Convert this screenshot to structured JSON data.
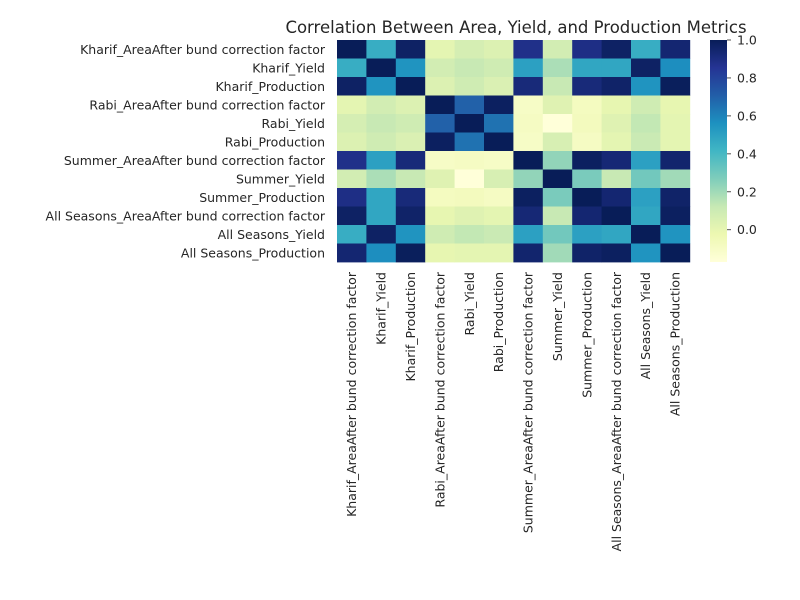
{
  "chart_data": {
    "type": "heatmap",
    "title": "Correlation Between Area, Yield, and Production Metrics",
    "xlabel": "",
    "ylabel": "",
    "labels": [
      "Kharif_AreaAfter bund correction factor",
      "Kharif_Yield",
      "Kharif_Production",
      "Rabi_AreaAfter bund correction factor",
      "Rabi_Yield",
      "Rabi_Production",
      "Summer_AreaAfter bund correction factor",
      "Summer_Yield",
      "Summer_Production",
      "All Seasons_AreaAfter bund correction factor",
      "All Seasons_Yield",
      "All Seasons_Production"
    ],
    "matrix": [
      [
        1.0,
        0.45,
        0.97,
        0.01,
        0.07,
        0.04,
        0.88,
        0.08,
        0.89,
        0.97,
        0.45,
        0.94
      ],
      [
        0.45,
        1.0,
        0.55,
        0.08,
        0.12,
        0.09,
        0.5,
        0.18,
        0.48,
        0.48,
        0.97,
        0.57
      ],
      [
        0.97,
        0.55,
        1.0,
        0.04,
        0.09,
        0.05,
        0.92,
        0.12,
        0.92,
        0.96,
        0.55,
        0.99
      ],
      [
        0.01,
        0.08,
        0.04,
        1.0,
        0.7,
        0.98,
        -0.1,
        0.03,
        -0.08,
        0.0,
        0.09,
        0.0
      ],
      [
        0.07,
        0.12,
        0.09,
        0.7,
        1.0,
        0.65,
        -0.09,
        -0.17,
        -0.07,
        0.03,
        0.13,
        0.01
      ],
      [
        0.04,
        0.09,
        0.05,
        0.98,
        0.65,
        1.0,
        -0.1,
        0.06,
        -0.09,
        0.01,
        0.11,
        0.01
      ],
      [
        0.88,
        0.5,
        0.92,
        -0.1,
        -0.09,
        -0.1,
        1.0,
        0.23,
        0.98,
        0.93,
        0.5,
        0.95
      ],
      [
        0.08,
        0.18,
        0.12,
        0.03,
        -0.17,
        0.06,
        0.23,
        1.0,
        0.28,
        0.12,
        0.3,
        0.2
      ],
      [
        0.89,
        0.48,
        0.92,
        -0.08,
        -0.07,
        -0.09,
        0.98,
        0.28,
        1.0,
        0.94,
        0.5,
        0.96
      ],
      [
        0.97,
        0.48,
        0.96,
        0.0,
        0.03,
        0.01,
        0.93,
        0.12,
        0.94,
        1.0,
        0.48,
        0.98
      ],
      [
        0.45,
        0.97,
        0.55,
        0.09,
        0.13,
        0.11,
        0.5,
        0.3,
        0.5,
        0.48,
        1.0,
        0.55
      ],
      [
        0.94,
        0.57,
        0.99,
        0.0,
        0.01,
        0.01,
        0.95,
        0.2,
        0.96,
        0.98,
        0.55,
        1.0
      ]
    ],
    "colorscale": "YlGnBu",
    "vmin": -0.17,
    "vmax": 1.0,
    "colorbar_ticks": [
      -0.0,
      0.2,
      0.4,
      0.6,
      0.8,
      1.0
    ],
    "colorbar_tick_labels": [
      "0.0",
      "0.2",
      "0.4",
      "0.6",
      "0.8",
      "1.0"
    ],
    "legend": "colorbar-right",
    "grid": false
  }
}
